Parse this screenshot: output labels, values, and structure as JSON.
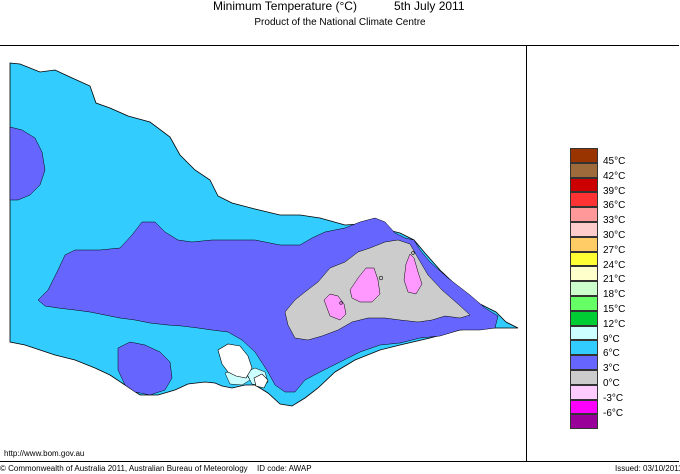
{
  "header": {
    "title": "Minimum Temperature (°C)",
    "date": "5th July 2011",
    "subtitle": "Product of the National Climate Centre"
  },
  "legend": [
    {
      "label": "45°C",
      "color": "#993300"
    },
    {
      "label": "42°C",
      "color": "#9e6a3c"
    },
    {
      "label": "39°C",
      "color": "#cc0000"
    },
    {
      "label": "36°C",
      "color": "#ff3333"
    },
    {
      "label": "33°C",
      "color": "#ff9999"
    },
    {
      "label": "30°C",
      "color": "#ffcccc"
    },
    {
      "label": "27°C",
      "color": "#ffcc66"
    },
    {
      "label": "24°C",
      "color": "#ffff33"
    },
    {
      "label": "21°C",
      "color": "#ffffcc"
    },
    {
      "label": "18°C",
      "color": "#ccffcc"
    },
    {
      "label": "15°C",
      "color": "#66ff66"
    },
    {
      "label": "12°C",
      "color": "#00cc33"
    },
    {
      "label": "9°C",
      "color": "#ccffff"
    },
    {
      "label": "6°C",
      "color": "#33ccff"
    },
    {
      "label": "3°C",
      "color": "#6666ff"
    },
    {
      "label": "0°C",
      "color": "#cccccc"
    },
    {
      "label": "-3°C",
      "color": "#ffccff"
    },
    {
      "label": "-6°C",
      "color": "#ff00ff"
    },
    {
      "label": "",
      "color": "#990099"
    }
  ],
  "map_colors": {
    "zone_6": "#33ccff",
    "zone_3": "#6666ff",
    "zone_0": "#cccccc",
    "zone_minus3": "#ff99ff",
    "zone_9": "#ccffff"
  },
  "footer": {
    "url": "http://www.bom.gov.au",
    "copyright": "© Commonwealth of Australia 2011, Australian Bureau of Meteorology",
    "id_code": "ID code: AWAP",
    "issued": "Issued: 03/10/2011"
  }
}
